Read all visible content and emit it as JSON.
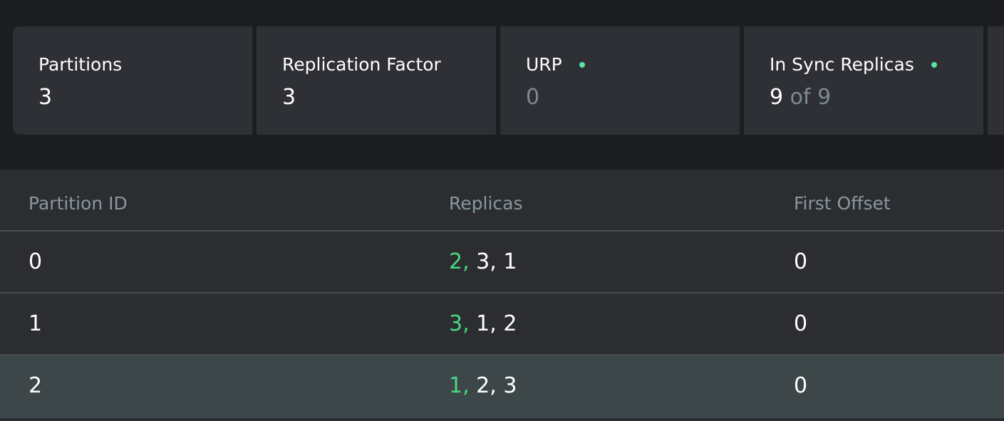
{
  "metrics": [
    {
      "label": "Partitions",
      "value": "3"
    },
    {
      "label": "Replication Factor",
      "value": "3"
    },
    {
      "label": "URP",
      "value": "0",
      "status_color": "#5be3a1"
    },
    {
      "label": "In Sync Replicas",
      "value": "9",
      "of_text": "of 9",
      "status_color": "#5be3a1"
    }
  ],
  "table": {
    "headers": [
      "Partition ID",
      "Replicas",
      "First Offset"
    ],
    "rows": [
      {
        "partition_id": "0",
        "leader": "2,",
        "replicas_rest": "3, 1",
        "first_offset": "0"
      },
      {
        "partition_id": "1",
        "leader": "3,",
        "replicas_rest": "1, 2",
        "first_offset": "0"
      },
      {
        "partition_id": "2",
        "leader": "1,",
        "replicas_rest": "2, 3",
        "first_offset": "0"
      }
    ]
  },
  "colors": {
    "leader": "#49d882",
    "status_ok": "#5be3a1"
  }
}
